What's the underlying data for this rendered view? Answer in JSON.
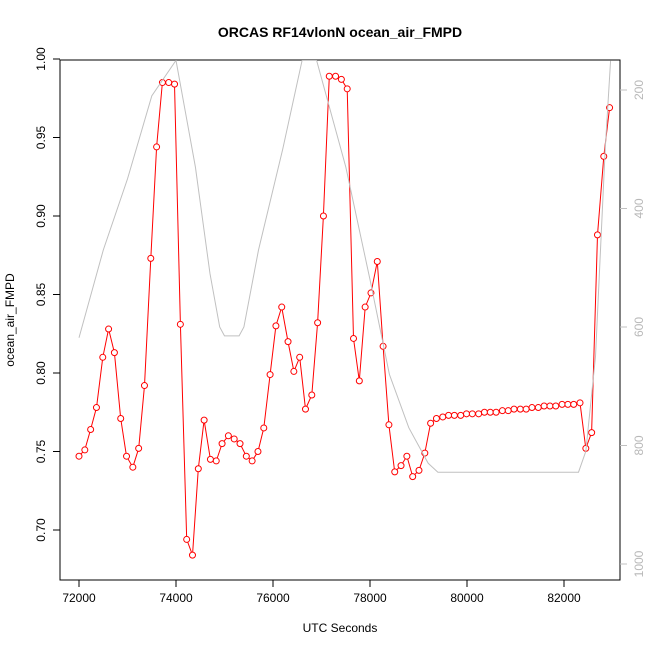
{
  "chart_data": {
    "type": "line",
    "title": "ORCAS RF14vlonN ocean_air_FMPD",
    "xlabel": "UTC Seconds",
    "ylabel": "ocean_air_FMPD",
    "xlim": [
      71600,
      83200
    ],
    "ylim": [
      0.6705,
      1.0
    ],
    "x_ticks": [
      72000,
      74000,
      76000,
      78000,
      80000,
      82000
    ],
    "y_ticks": [
      0.7,
      0.75,
      0.8,
      0.85,
      0.9,
      0.95,
      1.0
    ],
    "y_tick_labels": [
      "0.70",
      "0.75",
      "0.80",
      "0.85",
      "0.90",
      "0.95",
      "1.00"
    ],
    "right_axis": {
      "ticks": [
        200,
        400,
        600,
        800,
        1000
      ],
      "lim": [
        1025,
        150
      ],
      "color": "#c0c0c0"
    },
    "series": [
      {
        "color": "#ff0000",
        "marker": "open-circle",
        "points": [
          [
            72000,
            0.747
          ],
          [
            72120,
            0.751
          ],
          [
            72240,
            0.764
          ],
          [
            72360,
            0.778
          ],
          [
            72490,
            0.81
          ],
          [
            72610,
            0.828
          ],
          [
            72730,
            0.813
          ],
          [
            72860,
            0.771
          ],
          [
            72980,
            0.747
          ],
          [
            73110,
            0.74
          ],
          [
            73230,
            0.752
          ],
          [
            73350,
            0.792
          ],
          [
            73480,
            0.873
          ],
          [
            73600,
            0.944
          ],
          [
            73720,
            0.985
          ],
          [
            73850,
            0.985
          ],
          [
            73970,
            0.984
          ],
          [
            74090,
            0.831
          ],
          [
            74220,
            0.694
          ],
          [
            74340,
            0.684
          ],
          [
            74460,
            0.739
          ],
          [
            74580,
            0.77
          ],
          [
            74710,
            0.745
          ],
          [
            74830,
            0.744
          ],
          [
            74950,
            0.755
          ],
          [
            75080,
            0.76
          ],
          [
            75200,
            0.758
          ],
          [
            75320,
            0.755
          ],
          [
            75450,
            0.747
          ],
          [
            75570,
            0.744
          ],
          [
            75690,
            0.75
          ],
          [
            75810,
            0.765
          ],
          [
            75940,
            0.799
          ],
          [
            76060,
            0.83
          ],
          [
            76180,
            0.842
          ],
          [
            76310,
            0.82
          ],
          [
            76430,
            0.801
          ],
          [
            76550,
            0.81
          ],
          [
            76670,
            0.777
          ],
          [
            76800,
            0.786
          ],
          [
            76920,
            0.832
          ],
          [
            77040,
            0.9
          ],
          [
            77160,
            0.989
          ],
          [
            77290,
            0.989
          ],
          [
            77410,
            0.987
          ],
          [
            77530,
            0.981
          ],
          [
            77660,
            0.822
          ],
          [
            77780,
            0.795
          ],
          [
            77900,
            0.842
          ],
          [
            78020,
            0.851
          ],
          [
            78150,
            0.871
          ],
          [
            78270,
            0.817
          ],
          [
            78390,
            0.767
          ],
          [
            78510,
            0.737
          ],
          [
            78640,
            0.741
          ],
          [
            78760,
            0.747
          ],
          [
            78880,
            0.734
          ],
          [
            79010,
            0.738
          ],
          [
            79130,
            0.749
          ],
          [
            79250,
            0.768
          ],
          [
            79370,
            0.771
          ],
          [
            79500,
            0.772
          ],
          [
            79620,
            0.773
          ],
          [
            79740,
            0.773
          ],
          [
            79870,
            0.773
          ],
          [
            79990,
            0.774
          ],
          [
            80110,
            0.774
          ],
          [
            80240,
            0.774
          ],
          [
            80360,
            0.775
          ],
          [
            80480,
            0.775
          ],
          [
            80600,
            0.775
          ],
          [
            80730,
            0.776
          ],
          [
            80850,
            0.776
          ],
          [
            80970,
            0.777
          ],
          [
            81100,
            0.777
          ],
          [
            81220,
            0.777
          ],
          [
            81340,
            0.778
          ],
          [
            81470,
            0.778
          ],
          [
            81590,
            0.779
          ],
          [
            81710,
            0.779
          ],
          [
            81830,
            0.779
          ],
          [
            81960,
            0.78
          ],
          [
            82080,
            0.78
          ],
          [
            82200,
            0.78
          ],
          [
            82330,
            0.781
          ],
          [
            82450,
            0.752
          ],
          [
            82570,
            0.762
          ],
          [
            82690,
            0.888
          ],
          [
            82820,
            0.938
          ],
          [
            82940,
            0.969
          ]
        ]
      },
      {
        "axis": "right",
        "color": "#c0c0c0",
        "points": [
          [
            72000,
            618
          ],
          [
            72500,
            470
          ],
          [
            73000,
            350
          ],
          [
            73500,
            210
          ],
          [
            74000,
            150
          ],
          [
            74400,
            330
          ],
          [
            74700,
            510
          ],
          [
            74900,
            600
          ],
          [
            75000,
            615
          ],
          [
            75300,
            615
          ],
          [
            75400,
            600
          ],
          [
            75700,
            470
          ],
          [
            76200,
            300
          ],
          [
            76600,
            150
          ],
          [
            76900,
            150
          ],
          [
            77500,
            330
          ],
          [
            78000,
            520
          ],
          [
            78400,
            680
          ],
          [
            78800,
            770
          ],
          [
            79200,
            830
          ],
          [
            79400,
            845
          ],
          [
            80000,
            845
          ],
          [
            81000,
            845
          ],
          [
            82000,
            845
          ],
          [
            82300,
            845
          ],
          [
            82450,
            810
          ],
          [
            82650,
            650
          ],
          [
            82850,
            300
          ],
          [
            82960,
            150
          ]
        ]
      }
    ]
  }
}
